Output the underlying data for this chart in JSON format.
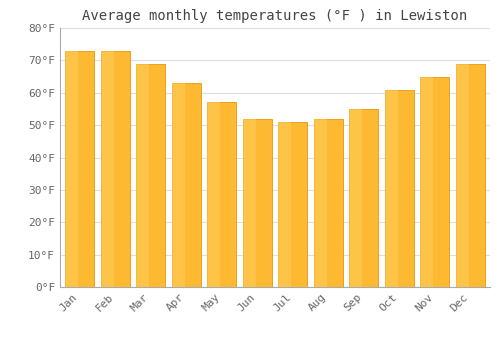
{
  "title": "Average monthly temperatures (°F ) in Lewiston",
  "months": [
    "Jan",
    "Feb",
    "Mar",
    "Apr",
    "May",
    "Jun",
    "Jul",
    "Aug",
    "Sep",
    "Oct",
    "Nov",
    "Dec"
  ],
  "values": [
    73,
    73,
    69,
    63,
    57,
    52,
    51,
    52,
    55,
    61,
    65,
    69
  ],
  "bar_color": "#FDB931",
  "bar_edge_color": "#E8960A",
  "background_color": "#FFFFFF",
  "plot_bg_color": "#FFFFFF",
  "ylim": [
    0,
    80
  ],
  "ytick_step": 10,
  "grid_color": "#DDDDDD",
  "title_fontsize": 10,
  "tick_fontsize": 8,
  "title_color": "#444444",
  "tick_color": "#666666",
  "bar_width": 0.82
}
